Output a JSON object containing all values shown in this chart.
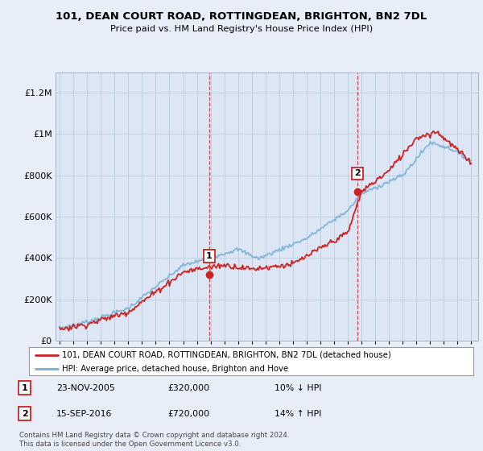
{
  "title": "101, DEAN COURT ROAD, ROTTINGDEAN, BRIGHTON, BN2 7DL",
  "subtitle": "Price paid vs. HM Land Registry's House Price Index (HPI)",
  "ylim": [
    0,
    1300000
  ],
  "yticks": [
    0,
    200000,
    400000,
    600000,
    800000,
    1000000,
    1200000
  ],
  "x_start_year": 1995,
  "x_end_year": 2025,
  "legend_line1": "101, DEAN COURT ROAD, ROTTINGDEAN, BRIGHTON, BN2 7DL (detached house)",
  "legend_line2": "HPI: Average price, detached house, Brighton and Hove",
  "sale1_date": "23-NOV-2005",
  "sale1_price": "£320,000",
  "sale1_hpi": "10% ↓ HPI",
  "sale1_year": 2005.9,
  "sale1_value": 320000,
  "sale2_date": "15-SEP-2016",
  "sale2_price": "£720,000",
  "sale2_hpi": "14% ↑ HPI",
  "sale2_year": 2016.7,
  "sale2_value": 720000,
  "hpi_color": "#7ab0d4",
  "price_color": "#cc2222",
  "background_color": "#e8eef8",
  "plot_bg_color": "#dce6f5",
  "footer_text": "Contains HM Land Registry data © Crown copyright and database right 2024.\nThis data is licensed under the Open Government Licence v3.0."
}
